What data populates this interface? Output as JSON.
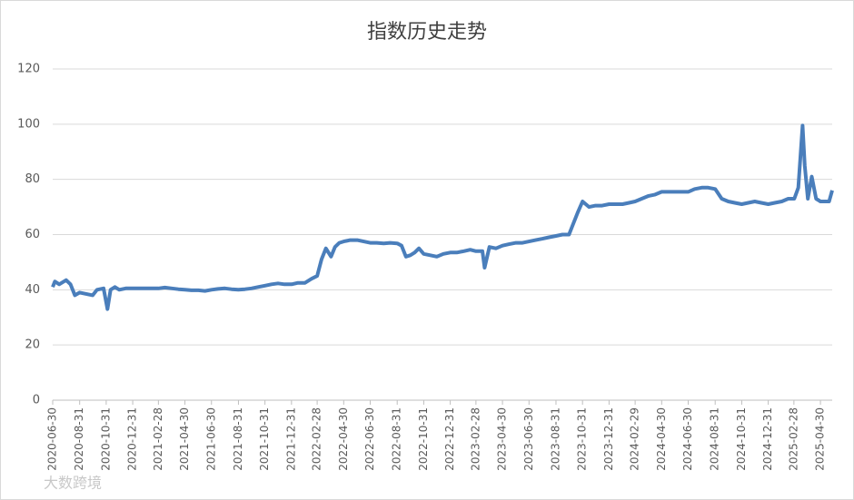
{
  "chart_data": {
    "type": "line",
    "title": "指数历史走势",
    "watermark": "大数跨境",
    "color": "#4a7ebb",
    "grid": true,
    "xlim": [
      "2020-06-30",
      "2025-05-27"
    ],
    "xticks": [
      "2020-06-30",
      "2020-08-31",
      "2020-10-31",
      "2020-12-31",
      "2021-02-28",
      "2021-04-30",
      "2021-06-30",
      "2021-08-31",
      "2021-10-31",
      "2021-12-31",
      "2022-02-28",
      "2022-04-30",
      "2022-06-30",
      "2022-08-31",
      "2022-10-31",
      "2022-12-31",
      "2023-02-28",
      "2023-04-30",
      "2023-06-30",
      "2023-08-31",
      "2023-10-31",
      "2023-12-31",
      "2024-02-29",
      "2024-04-30",
      "2024-06-30",
      "2024-08-31",
      "2024-10-31",
      "2024-12-31",
      "2025-02-28",
      "2025-04-30"
    ],
    "ylim": [
      0,
      120
    ],
    "yticks": [
      0,
      20,
      40,
      60,
      80,
      100,
      120
    ],
    "x": [
      "2020-06-30",
      "2020-07-05",
      "2020-07-15",
      "2020-07-31",
      "2020-08-10",
      "2020-08-20",
      "2020-08-31",
      "2020-09-15",
      "2020-09-30",
      "2020-10-10",
      "2020-10-25",
      "2020-11-03",
      "2020-11-10",
      "2020-11-20",
      "2020-11-30",
      "2020-12-15",
      "2020-12-31",
      "2021-01-15",
      "2021-01-31",
      "2021-02-15",
      "2021-02-28",
      "2021-03-15",
      "2021-03-31",
      "2021-04-15",
      "2021-04-30",
      "2021-05-15",
      "2021-05-31",
      "2021-06-15",
      "2021-06-30",
      "2021-07-15",
      "2021-07-31",
      "2021-08-15",
      "2021-08-31",
      "2021-09-15",
      "2021-09-30",
      "2021-10-15",
      "2021-10-31",
      "2021-11-15",
      "2021-11-30",
      "2021-12-15",
      "2021-12-31",
      "2022-01-15",
      "2022-01-31",
      "2022-02-15",
      "2022-02-28",
      "2022-03-10",
      "2022-03-20",
      "2022-04-01",
      "2022-04-10",
      "2022-04-20",
      "2022-04-30",
      "2022-05-15",
      "2022-05-31",
      "2022-06-15",
      "2022-06-30",
      "2022-07-15",
      "2022-07-31",
      "2022-08-15",
      "2022-08-31",
      "2022-09-10",
      "2022-09-20",
      "2022-09-30",
      "2022-10-10",
      "2022-10-20",
      "2022-10-31",
      "2022-11-15",
      "2022-11-30",
      "2022-12-15",
      "2022-12-31",
      "2023-01-15",
      "2023-01-31",
      "2023-02-15",
      "2023-02-28",
      "2023-03-15",
      "2023-03-20",
      "2023-03-31",
      "2023-04-15",
      "2023-04-30",
      "2023-05-15",
      "2023-05-31",
      "2023-06-15",
      "2023-06-30",
      "2023-07-15",
      "2023-07-31",
      "2023-08-15",
      "2023-08-31",
      "2023-09-15",
      "2023-09-30",
      "2023-10-10",
      "2023-10-20",
      "2023-10-31",
      "2023-11-15",
      "2023-11-30",
      "2023-12-15",
      "2023-12-31",
      "2024-01-15",
      "2024-01-31",
      "2024-02-15",
      "2024-02-29",
      "2024-03-15",
      "2024-03-31",
      "2024-04-15",
      "2024-04-30",
      "2024-05-15",
      "2024-05-31",
      "2024-06-15",
      "2024-06-30",
      "2024-07-15",
      "2024-07-31",
      "2024-08-15",
      "2024-08-31",
      "2024-09-15",
      "2024-09-30",
      "2024-10-15",
      "2024-10-31",
      "2024-11-15",
      "2024-11-30",
      "2024-12-15",
      "2024-12-31",
      "2025-01-15",
      "2025-01-31",
      "2025-02-15",
      "2025-03-01",
      "2025-03-10",
      "2025-03-20",
      "2025-03-25",
      "2025-04-01",
      "2025-04-10",
      "2025-04-20",
      "2025-04-30",
      "2025-05-10",
      "2025-05-20",
      "2025-05-27"
    ],
    "values": [
      41,
      43,
      42,
      43.5,
      42,
      38,
      39,
      38.5,
      38,
      40,
      40.5,
      33,
      40,
      41,
      40,
      40.5,
      40.5,
      40.5,
      40.5,
      40.5,
      40.5,
      40.8,
      40.5,
      40.2,
      40,
      39.8,
      39.8,
      39.6,
      40,
      40.3,
      40.5,
      40.2,
      40,
      40.2,
      40.5,
      41,
      41.5,
      42,
      42.3,
      42,
      42,
      42.5,
      42.5,
      44,
      45,
      51,
      55,
      52,
      55.5,
      57,
      57.5,
      58,
      58,
      57.5,
      57,
      57,
      56.8,
      57,
      56.8,
      56,
      52,
      52.5,
      53.5,
      55,
      53,
      52.5,
      52,
      53,
      53.5,
      53.5,
      54,
      54.5,
      54,
      54,
      48,
      55.5,
      55,
      56,
      56.5,
      57,
      57,
      57.5,
      58,
      58.5,
      59,
      59.5,
      60,
      60,
      64,
      68,
      72,
      70,
      70.5,
      70.5,
      71,
      71,
      71,
      71.5,
      72,
      73,
      74,
      74.5,
      75.5,
      75.5,
      75.5,
      75.5,
      75.5,
      76.5,
      77,
      77,
      76.5,
      73,
      72,
      71.5,
      71,
      71.5,
      72,
      71.5,
      71,
      71.5,
      72,
      73,
      73,
      77,
      99.5,
      85,
      73,
      81,
      73,
      72,
      72,
      72,
      76
    ]
  }
}
